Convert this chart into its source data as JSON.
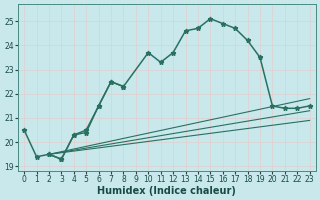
{
  "xlabel": "Humidex (Indice chaleur)",
  "bg_color": "#c8e8ec",
  "grid_color": "#b0d8dc",
  "line_color": "#2a7060",
  "xlim": [
    -0.5,
    23.5
  ],
  "ylim": [
    18.8,
    25.7
  ],
  "yticks": [
    19,
    20,
    21,
    22,
    23,
    24,
    25
  ],
  "xticks": [
    0,
    1,
    2,
    3,
    4,
    5,
    6,
    7,
    8,
    9,
    10,
    11,
    12,
    13,
    14,
    15,
    16,
    17,
    18,
    19,
    20,
    21,
    22,
    23
  ],
  "tick_fontsize": 5.5,
  "xlabel_fontsize": 7,
  "s1_x": [
    0,
    1,
    2,
    3,
    4,
    5,
    6,
    7,
    8,
    10,
    11,
    12,
    13,
    14,
    15,
    16,
    17,
    18,
    19,
    20,
    21,
    22,
    23
  ],
  "s1_y": [
    20.5,
    19.4,
    19.5,
    19.3,
    20.3,
    20.5,
    21.5,
    22.5,
    22.3,
    23.7,
    23.3,
    23.7,
    24.6,
    24.7,
    25.1,
    24.9,
    24.7,
    24.2,
    23.5,
    21.5,
    21.4,
    21.4,
    21.5
  ],
  "s2_x": [
    2,
    3,
    4,
    5,
    6,
    7,
    8
  ],
  "s2_y": [
    19.5,
    19.3,
    20.3,
    20.4,
    21.5,
    22.5,
    22.3
  ],
  "line1_x": [
    2,
    23
  ],
  "line1_y": [
    19.5,
    21.8
  ],
  "line2_x": [
    2,
    23
  ],
  "line2_y": [
    19.5,
    21.3
  ],
  "line3_x": [
    2,
    23
  ],
  "line3_y": [
    19.5,
    20.9
  ]
}
